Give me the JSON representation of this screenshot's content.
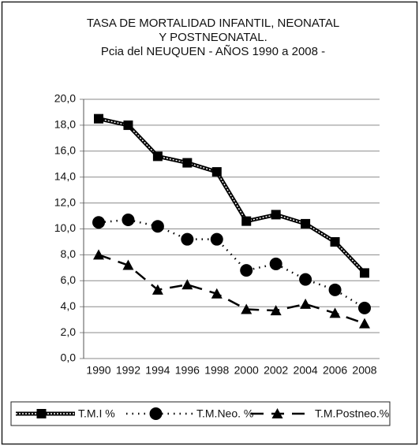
{
  "chart_data": {
    "type": "line",
    "title": [
      "TASA DE MORTALIDAD INFANTIL, NEONATAL",
      "Y POSTNEONATAL.",
      "Pcia del NEUQUEN - AÑOS 1990 a 2008 -"
    ],
    "categories": [
      "1990",
      "1992",
      "1994",
      "1996",
      "1998",
      "2000",
      "2002",
      "2004",
      "2006",
      "2008"
    ],
    "series": [
      {
        "name": "T.M.I %",
        "color": "#000000",
        "marker": "square",
        "style": "hatched",
        "values": [
          18.5,
          18.0,
          15.6,
          15.1,
          14.4,
          10.6,
          11.1,
          10.4,
          9.0,
          6.6
        ]
      },
      {
        "name": "T.M.Neo. %",
        "color": "#000000",
        "marker": "circle",
        "style": "dotted",
        "values": [
          10.5,
          10.7,
          10.2,
          9.2,
          9.2,
          6.8,
          7.3,
          6.1,
          5.3,
          3.9
        ]
      },
      {
        "name": "T.M.Postneo.%",
        "color": "#000000",
        "marker": "triangle",
        "style": "dashed",
        "values": [
          8.0,
          7.2,
          5.3,
          5.7,
          5.0,
          3.8,
          3.7,
          4.2,
          3.5,
          2.7
        ]
      }
    ],
    "ylim": [
      0,
      20
    ],
    "yticks": [
      {
        "value": 0,
        "label": "0,0"
      },
      {
        "value": 2,
        "label": "2,0"
      },
      {
        "value": 4,
        "label": "4,0"
      },
      {
        "value": 6,
        "label": "6,0"
      },
      {
        "value": 8,
        "label": "8,0"
      },
      {
        "value": 10,
        "label": "10,0"
      },
      {
        "value": 12,
        "label": "12,0"
      },
      {
        "value": 14,
        "label": "14,0"
      },
      {
        "value": 16,
        "label": "16,0"
      },
      {
        "value": 18,
        "label": "18,0"
      },
      {
        "value": 20,
        "label": "20,0"
      }
    ],
    "grid": true,
    "legend": "bottom"
  }
}
